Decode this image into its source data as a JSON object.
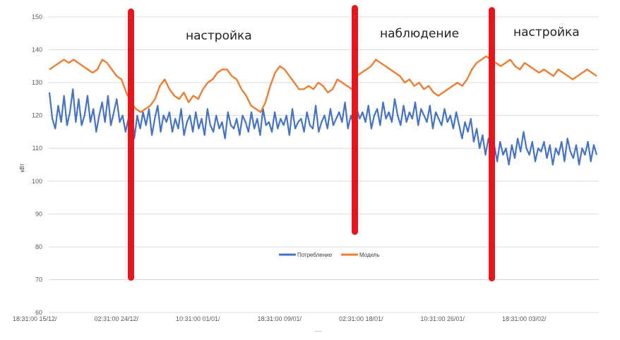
{
  "chart_data": {
    "type": "line",
    "title": "",
    "xlabel": "",
    "ylabel": "кВт",
    "ylim": [
      60,
      150
    ],
    "yticks": [
      60,
      70,
      80,
      90,
      100,
      110,
      120,
      130,
      140,
      150
    ],
    "x_tick_labels": [
      "18:31:00 15/12/",
      "02:31:00 24/12/",
      "10:31:00 01/01/",
      "18:31:00 09/01/",
      "02:31:00 18/01/",
      "10:31:00 26/01/",
      "18:31:00 03/02/"
    ],
    "x_footer": "----",
    "grid": true,
    "legend": "bottom-center",
    "series": [
      {
        "name": "Потребление",
        "color": "#4472C4",
        "values": [
          127,
          119,
          116,
          123,
          118,
          126,
          117,
          121,
          128,
          118,
          125,
          117,
          120,
          126,
          118,
          122,
          115,
          120,
          124,
          118,
          126,
          117,
          121,
          125,
          118,
          120,
          115,
          119,
          124,
          113,
          120,
          116,
          121,
          117,
          122,
          114,
          119,
          123,
          115,
          120,
          118,
          121,
          115,
          119,
          116,
          122,
          114,
          118,
          120,
          115,
          121,
          116,
          119,
          114,
          122,
          117,
          115,
          120,
          116,
          118,
          113,
          121,
          117,
          116,
          119,
          114,
          120,
          118,
          115,
          121,
          116,
          119,
          114,
          122,
          117,
          118,
          115,
          121,
          116,
          119,
          117,
          120,
          114,
          122,
          116,
          118,
          119,
          115,
          121,
          117,
          116,
          123,
          115,
          118,
          120,
          116,
          122,
          117,
          119,
          121,
          118,
          124,
          116,
          120,
          117,
          122,
          119,
          121,
          118,
          123,
          116,
          120,
          122,
          117,
          124,
          119,
          121,
          118,
          125,
          120,
          117,
          123,
          118,
          121,
          119,
          124,
          117,
          122,
          120,
          118,
          123,
          116,
          121,
          119,
          117,
          122,
          118,
          120,
          116,
          121,
          117,
          113,
          118,
          115,
          119,
          112,
          116,
          110,
          114,
          108,
          113,
          109,
          111,
          106,
          112,
          108,
          110,
          105,
          111,
          107,
          113,
          109,
          115,
          110,
          108,
          112,
          106,
          110,
          109,
          112,
          107,
          111,
          105,
          110,
          108,
          112,
          106,
          113,
          109,
          107,
          111,
          105,
          110,
          108,
          112,
          106,
          111,
          108
        ]
      },
      {
        "name": "Модель",
        "color": "#ED7D31",
        "values": [
          134,
          135,
          136,
          137,
          136,
          137,
          136,
          135,
          134,
          133,
          134,
          137,
          136,
          134,
          132,
          131,
          127,
          124,
          122,
          121,
          122,
          123,
          125,
          129,
          131,
          128,
          126,
          125,
          127,
          124,
          126,
          125,
          128,
          130,
          131,
          133,
          134,
          134,
          132,
          131,
          128,
          126,
          123,
          122,
          121,
          124,
          129,
          133,
          135,
          134,
          132,
          130,
          128,
          128,
          129,
          128,
          130,
          129,
          127,
          128,
          131,
          130,
          129,
          128,
          132,
          133,
          134,
          135,
          137,
          136,
          135,
          134,
          133,
          132,
          130,
          131,
          129,
          130,
          128,
          129,
          127,
          126,
          127,
          128,
          129,
          130,
          129,
          131,
          134,
          136,
          137,
          138,
          137,
          136,
          135,
          136,
          137,
          135,
          134,
          136,
          135,
          134,
          133,
          134,
          133,
          132,
          134,
          133,
          132,
          131,
          132,
          133,
          134,
          133,
          132
        ]
      }
    ]
  },
  "annotations": {
    "phase1": "настройка",
    "phase2": "наблюдение",
    "phase3": "настройка"
  }
}
